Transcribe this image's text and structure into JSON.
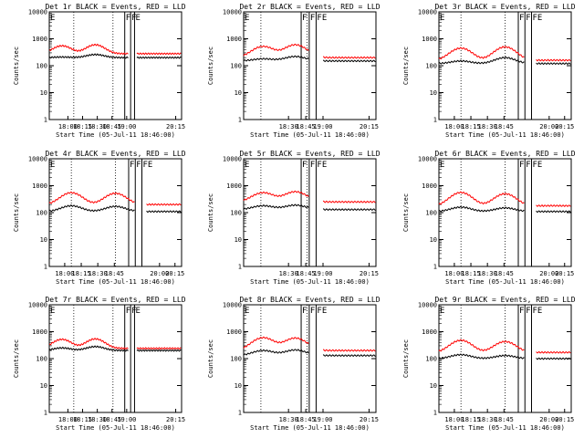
{
  "figure": {
    "background": "#ffffff",
    "event_color": "#000000",
    "lld_color": "#ff0000"
  },
  "chart_data": [
    {
      "type": "line",
      "title": "Det 1r BLACK = Events, RED = LLD",
      "xlabel": "Start Time (05-Jul-11 18:46:00)",
      "ylabel": "Counts/sec",
      "yscale": "log",
      "ylim": [
        1,
        10000
      ],
      "yticks": [
        "1",
        "10",
        "100",
        "1000",
        "10000"
      ],
      "xticks": [
        "18:00",
        "18:15",
        "18:30",
        "18:45",
        "19:00",
        "20:15"
      ],
      "xlim_minutes": [
        -65,
        70
      ],
      "flags": [
        "E",
        "F",
        "F",
        "E"
      ],
      "flag_times": [
        -65,
        12,
        18,
        22
      ],
      "data_gap": [
        16,
        24
      ],
      "event_level": 200,
      "lld_level": 280,
      "event_peaks": [
        {
          "t": -52,
          "v": 210
        },
        {
          "t": -18,
          "v": 260
        }
      ],
      "lld_peaks": [
        {
          "t": -52,
          "v": 550
        },
        {
          "t": -18,
          "v": 600
        }
      ],
      "series": [
        {
          "name": "Events",
          "color": "#000000"
        },
        {
          "name": "LLD",
          "color": "#ff0000"
        }
      ]
    },
    {
      "type": "line",
      "title": "Det 2r BLACK = Events, RED = LLD",
      "xlabel": "Start Time (05-Jul-11 18:46:00)",
      "ylabel": "Counts/sec",
      "yscale": "log",
      "ylim": [
        1,
        10000
      ],
      "yticks": [
        "1",
        "10",
        "100",
        "1000",
        "10000"
      ],
      "xticks": [
        "18:30",
        "18:45",
        "19:00",
        "20:15"
      ],
      "xlim_minutes": [
        -55,
        60
      ],
      "flags": [
        "E",
        "F",
        "F",
        "FE"
      ],
      "flag_times": [
        -55,
        -5,
        2,
        8
      ],
      "data_gap": [
        2,
        14
      ],
      "event_level": 150,
      "lld_level": 200,
      "event_peaks": [
        {
          "t": -38,
          "v": 180
        },
        {
          "t": -10,
          "v": 220
        }
      ],
      "lld_peaks": [
        {
          "t": -38,
          "v": 520
        },
        {
          "t": -10,
          "v": 600
        }
      ],
      "series": [
        {
          "name": "Events",
          "color": "#000000"
        },
        {
          "name": "LLD",
          "color": "#ff0000"
        }
      ]
    },
    {
      "type": "line",
      "title": "Det 3r BLACK = Events, RED = LLD",
      "xlabel": "Start Time (05-Jul-11 18:46:00)",
      "ylabel": "Counts/sec",
      "yscale": "log",
      "ylim": [
        1,
        10000
      ],
      "yticks": [
        "1",
        "10",
        "100",
        "1000",
        "10000"
      ],
      "xticks": [
        "18:00",
        "18:15",
        "18:30",
        "18:45",
        "20:00",
        "20:15"
      ],
      "xlim_minutes": [
        -60,
        60
      ],
      "flags": [
        "E",
        "F",
        "F",
        "FE"
      ],
      "flag_times": [
        -60,
        12,
        18,
        24
      ],
      "data_gap": [
        18,
        28
      ],
      "event_level": 120,
      "lld_level": 160,
      "event_peaks": [
        {
          "t": -40,
          "v": 150
        },
        {
          "t": 0,
          "v": 200
        }
      ],
      "lld_peaks": [
        {
          "t": -40,
          "v": 450
        },
        {
          "t": 0,
          "v": 500
        }
      ],
      "series": [
        {
          "name": "Events",
          "color": "#000000"
        },
        {
          "name": "LLD",
          "color": "#ff0000"
        }
      ]
    },
    {
      "type": "line",
      "title": "Det 4r BLACK = Events, RED = LLD",
      "xlabel": "Start Time (05-Jul-11 18:46:00)",
      "ylabel": "Counts/sec",
      "yscale": "log",
      "ylim": [
        1,
        10000
      ],
      "yticks": [
        "1",
        "10",
        "100",
        "1000",
        "10000"
      ],
      "xticks": [
        "18:00",
        "18:15",
        "18:30",
        "18:45",
        "20:00",
        "20:15"
      ],
      "xlim_minutes": [
        -60,
        60
      ],
      "flags": [
        "E",
        "F",
        "F",
        "FE"
      ],
      "flag_times": [
        -60,
        12,
        18,
        24
      ],
      "data_gap": [
        18,
        28
      ],
      "event_level": 110,
      "lld_level": 200,
      "event_peaks": [
        {
          "t": -40,
          "v": 180
        },
        {
          "t": 0,
          "v": 170
        }
      ],
      "lld_peaks": [
        {
          "t": -40,
          "v": 550
        },
        {
          "t": 0,
          "v": 520
        }
      ],
      "series": [
        {
          "name": "Events",
          "color": "#000000"
        },
        {
          "name": "LLD",
          "color": "#ff0000"
        }
      ]
    },
    {
      "type": "line",
      "title": "Det 5r BLACK = Events, RED = LLD",
      "xlabel": "Start Time (05-Jul-11 18:46:00)",
      "ylabel": "Counts/sec",
      "yscale": "log",
      "ylim": [
        1,
        10000
      ],
      "yticks": [
        "1",
        "10",
        "100",
        "1000",
        "10000"
      ],
      "xticks": [
        "18:30",
        "18:45",
        "19:00",
        "20:15"
      ],
      "xlim_minutes": [
        -55,
        60
      ],
      "flags": [
        "E",
        "F",
        "F",
        "FE"
      ],
      "flag_times": [
        -55,
        -5,
        2,
        8
      ],
      "data_gap": [
        2,
        14
      ],
      "event_level": 130,
      "lld_level": 250,
      "event_peaks": [
        {
          "t": -38,
          "v": 180
        },
        {
          "t": -10,
          "v": 190
        }
      ],
      "lld_peaks": [
        {
          "t": -38,
          "v": 550
        },
        {
          "t": -10,
          "v": 600
        }
      ],
      "series": [
        {
          "name": "Events",
          "color": "#000000"
        },
        {
          "name": "LLD",
          "color": "#ff0000"
        }
      ]
    },
    {
      "type": "line",
      "title": "Det 6r BLACK = Events, RED = LLD",
      "xlabel": "Start Time (05-Jul-11 18:46:00)",
      "ylabel": "Counts/sec",
      "yscale": "log",
      "ylim": [
        1,
        10000
      ],
      "yticks": [
        "1",
        "10",
        "100",
        "1000",
        "10000"
      ],
      "xticks": [
        "18:00",
        "18:15",
        "18:30",
        "18:45",
        "20:00",
        "20:15"
      ],
      "xlim_minutes": [
        -60,
        60
      ],
      "flags": [
        "E",
        "F",
        "F",
        "FE"
      ],
      "flag_times": [
        -60,
        12,
        18,
        24
      ],
      "data_gap": [
        18,
        28
      ],
      "event_level": 110,
      "lld_level": 180,
      "event_peaks": [
        {
          "t": -40,
          "v": 160
        },
        {
          "t": 0,
          "v": 150
        }
      ],
      "lld_peaks": [
        {
          "t": -40,
          "v": 560
        },
        {
          "t": 0,
          "v": 500
        }
      ],
      "series": [
        {
          "name": "Events",
          "color": "#000000"
        },
        {
          "name": "LLD",
          "color": "#ff0000"
        }
      ]
    },
    {
      "type": "line",
      "title": "Det 7r BLACK = Events, RED = LLD",
      "xlabel": "Start Time (05-Jul-11 18:46:00)",
      "ylabel": "Counts/sec",
      "yscale": "log",
      "ylim": [
        1,
        10000
      ],
      "yticks": [
        "1",
        "10",
        "100",
        "1000",
        "10000"
      ],
      "xticks": [
        "18:00",
        "18:15",
        "18:30",
        "18:45",
        "19:00",
        "20:15"
      ],
      "xlim_minutes": [
        -65,
        70
      ],
      "flags": [
        "E",
        "F",
        "F",
        "E"
      ],
      "flag_times": [
        -65,
        12,
        18,
        22
      ],
      "data_gap": [
        16,
        24
      ],
      "event_level": 200,
      "lld_level": 240,
      "event_peaks": [
        {
          "t": -52,
          "v": 250
        },
        {
          "t": -18,
          "v": 280
        }
      ],
      "lld_peaks": [
        {
          "t": -52,
          "v": 520
        },
        {
          "t": -18,
          "v": 540
        }
      ],
      "series": [
        {
          "name": "Events",
          "color": "#000000"
        },
        {
          "name": "LLD",
          "color": "#ff0000"
        }
      ]
    },
    {
      "type": "line",
      "title": "Det 8r BLACK = Events, RED = LLD",
      "xlabel": "Start Time (05-Jul-11 18:46:00)",
      "ylabel": "Counts/sec",
      "yscale": "log",
      "ylim": [
        1,
        10000
      ],
      "yticks": [
        "1",
        "10",
        "100",
        "1000",
        "10000"
      ],
      "xticks": [
        "18:30",
        "18:45",
        "19:00",
        "20:15"
      ],
      "xlim_minutes": [
        -55,
        60
      ],
      "flags": [
        "E",
        "F",
        "F",
        "FE"
      ],
      "flag_times": [
        -55,
        -5,
        2,
        8
      ],
      "data_gap": [
        2,
        14
      ],
      "event_level": 130,
      "lld_level": 200,
      "event_peaks": [
        {
          "t": -38,
          "v": 200
        },
        {
          "t": -10,
          "v": 210
        }
      ],
      "lld_peaks": [
        {
          "t": -38,
          "v": 600
        },
        {
          "t": -10,
          "v": 580
        }
      ],
      "series": [
        {
          "name": "Events",
          "color": "#000000"
        },
        {
          "name": "LLD",
          "color": "#ff0000"
        }
      ]
    },
    {
      "type": "line",
      "title": "Det 9r BLACK = Events, RED = LLD",
      "xlabel": "Start Time (05-Jul-11 18:46:00)",
      "ylabel": "Counts/sec",
      "yscale": "log",
      "ylim": [
        1,
        10000
      ],
      "yticks": [
        "1",
        "10",
        "100",
        "1000",
        "10000"
      ],
      "xticks": [
        "18:00",
        "18:15",
        "18:30",
        "18:45",
        "20:00",
        "20:15"
      ],
      "xlim_minutes": [
        -60,
        60
      ],
      "flags": [
        "E",
        "F",
        "F",
        "FE"
      ],
      "flag_times": [
        -60,
        12,
        18,
        24
      ],
      "data_gap": [
        18,
        28
      ],
      "event_level": 100,
      "lld_level": 170,
      "event_peaks": [
        {
          "t": -40,
          "v": 140
        },
        {
          "t": 0,
          "v": 130
        }
      ],
      "lld_peaks": [
        {
          "t": -40,
          "v": 480
        },
        {
          "t": 0,
          "v": 430
        }
      ],
      "series": [
        {
          "name": "Events",
          "color": "#000000"
        },
        {
          "name": "LLD",
          "color": "#ff0000"
        }
      ]
    }
  ]
}
